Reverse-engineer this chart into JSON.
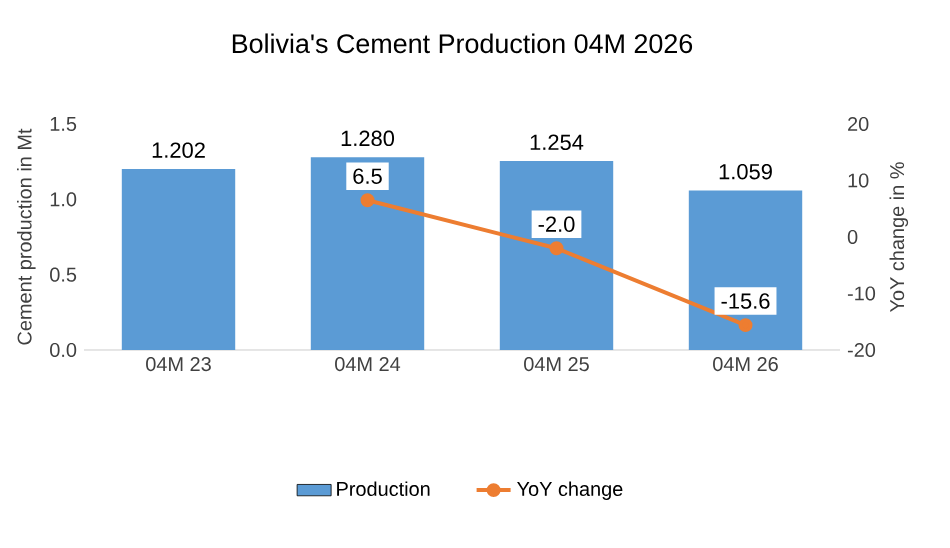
{
  "chart_data": {
    "type": "bar",
    "title": "Bolivia's Cement Production 04M 2026",
    "categories": [
      "04M 23",
      "04M 24",
      "04M 25",
      "04M 26"
    ],
    "ylabel": "Cement production in Mt",
    "y2label": "YoY change in %",
    "ylim": [
      0,
      1.5
    ],
    "yticks": [
      {
        "value": 0,
        "label": "0.0"
      },
      {
        "value": 0.5,
        "label": "0.5"
      },
      {
        "value": 1,
        "label": "1.0"
      },
      {
        "value": 1.5,
        "label": "1.5"
      }
    ],
    "y2lim": [
      -20,
      20
    ],
    "y2ticks": [
      -20,
      -10,
      0,
      10,
      20
    ],
    "series": [
      {
        "name": "Production",
        "color": "#5b9bd5",
        "values": [
          1.202,
          1.28,
          1.254,
          1.059
        ],
        "value_labels": [
          "1.202",
          "1.280",
          "1.254",
          "1.059"
        ]
      },
      {
        "name": "YoY change",
        "type": "line",
        "axis": "y2",
        "color": "#ed7d31",
        "marker": "circle",
        "values": [
          null,
          6.5,
          -2.0,
          -15.6
        ],
        "value_labels": [
          null,
          "6.5",
          "-2.0",
          "-15.6"
        ]
      }
    ],
    "legend": "bottom",
    "grid": false
  }
}
